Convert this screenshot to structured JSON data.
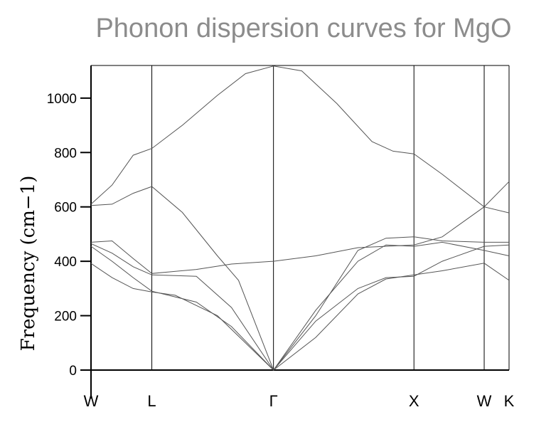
{
  "chart_data": {
    "type": "line",
    "title": "Phonon dispersion curves for MgO",
    "ylabel": "Frequency (cm−1)",
    "xlabel": "",
    "ylim": [
      0,
      1120
    ],
    "yticks": [
      0,
      200,
      400,
      600,
      800,
      1000
    ],
    "ytick_labels": [
      "0",
      "200",
      "400",
      "600",
      "800",
      "1000"
    ],
    "kpoints": [
      {
        "label": "W",
        "x": 0
      },
      {
        "label": "L",
        "x": 0.866
      },
      {
        "label": "Γ",
        "x": 2.598
      },
      {
        "label": "X",
        "x": 4.598
      },
      {
        "label": "W",
        "x": 5.598
      },
      {
        "label": "K",
        "x": 5.952
      }
    ],
    "grid": false,
    "series": [
      {
        "values": [
          [
            0,
            605
          ],
          [
            0.3,
            610
          ],
          [
            0.6,
            650
          ],
          [
            0.866,
            675
          ],
          [
            1.3,
            580
          ],
          [
            1.8,
            420
          ],
          [
            2.1,
            330
          ],
          [
            2.598,
            0
          ],
          [
            3.2,
            220
          ],
          [
            3.8,
            400
          ],
          [
            4.2,
            460
          ],
          [
            4.598,
            455
          ],
          [
            5.0,
            470
          ],
          [
            5.598,
            440
          ],
          [
            5.952,
            420
          ]
        ]
      },
      {
        "values": [
          [
            0,
            610
          ],
          [
            0.3,
            680
          ],
          [
            0.6,
            790
          ],
          [
            0.866,
            815
          ],
          [
            1.3,
            900
          ],
          [
            1.8,
            1010
          ],
          [
            2.2,
            1090
          ],
          [
            2.598,
            1118
          ],
          [
            3.0,
            1100
          ],
          [
            3.5,
            980
          ],
          [
            4.0,
            840
          ],
          [
            4.3,
            805
          ],
          [
            4.598,
            795
          ],
          [
            5.0,
            720
          ],
          [
            5.598,
            600
          ],
          [
            5.952,
            578
          ]
        ]
      },
      {
        "values": [
          [
            0,
            470
          ],
          [
            0.3,
            475
          ],
          [
            0.6,
            410
          ],
          [
            0.866,
            355
          ],
          [
            1.5,
            370
          ],
          [
            2.0,
            390
          ],
          [
            2.598,
            400
          ],
          [
            3.2,
            420
          ],
          [
            3.8,
            450
          ],
          [
            4.598,
            460
          ],
          [
            5.0,
            490
          ],
          [
            5.598,
            600
          ],
          [
            5.952,
            693
          ]
        ]
      },
      {
        "values": [
          [
            0,
            465
          ],
          [
            0.3,
            430
          ],
          [
            0.6,
            380
          ],
          [
            0.866,
            350
          ],
          [
            1.5,
            345
          ],
          [
            2.0,
            230
          ],
          [
            2.598,
            0
          ],
          [
            3.2,
            200
          ],
          [
            3.8,
            440
          ],
          [
            4.2,
            485
          ],
          [
            4.598,
            490
          ],
          [
            5.0,
            475
          ],
          [
            5.598,
            470
          ],
          [
            5.952,
            470
          ]
        ]
      },
      {
        "values": [
          [
            0,
            455
          ],
          [
            0.3,
            400
          ],
          [
            0.6,
            340
          ],
          [
            0.866,
            290
          ],
          [
            1.5,
            250
          ],
          [
            2.0,
            160
          ],
          [
            2.598,
            0
          ],
          [
            3.2,
            180
          ],
          [
            3.8,
            300
          ],
          [
            4.2,
            340
          ],
          [
            4.598,
            345
          ],
          [
            5.0,
            400
          ],
          [
            5.598,
            455
          ],
          [
            5.952,
            460
          ]
        ]
      },
      {
        "values": [
          [
            0,
            392
          ],
          [
            0.3,
            340
          ],
          [
            0.6,
            300
          ],
          [
            0.866,
            287
          ],
          [
            1.2,
            275
          ],
          [
            1.8,
            200
          ],
          [
            2.598,
            0
          ],
          [
            3.2,
            120
          ],
          [
            3.8,
            280
          ],
          [
            4.2,
            335
          ],
          [
            4.598,
            350
          ],
          [
            5.0,
            365
          ],
          [
            5.598,
            393
          ],
          [
            5.952,
            330
          ]
        ]
      }
    ]
  }
}
